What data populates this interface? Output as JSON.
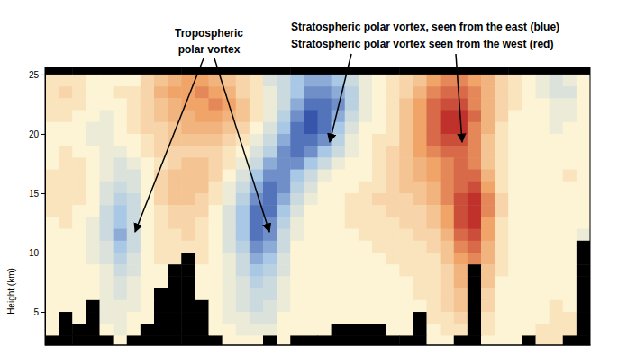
{
  "chart_data": {
    "type": "heatmap",
    "y_label": "Height (km)",
    "ylim": [
      2.2,
      25.6
    ],
    "yticks": [
      5,
      10,
      15,
      20,
      25
    ],
    "xlim": [
      0,
      40
    ],
    "tick_labels": "y",
    "zlim": [
      -10,
      10
    ],
    "annotations": [
      {
        "lines": [
          "Tropospheric",
          "polar vortex"
        ]
      },
      {
        "lines": [
          "Stratospheric polar vortex, seen from the east (blue)"
        ]
      },
      {
        "lines": [
          "Stratospheric polar vortex seen from the west (red)"
        ]
      }
    ],
    "y_edges": [
      25.6,
      25,
      24,
      23,
      22,
      21,
      20,
      19,
      18,
      17,
      16,
      15,
      14,
      13,
      12,
      11,
      10,
      9,
      8,
      7,
      6,
      5,
      4,
      3,
      2
    ],
    "cells": [
      [
        null,
        null,
        null,
        null,
        null,
        null,
        null,
        null,
        null,
        null,
        null,
        null,
        null,
        null,
        null,
        null,
        null,
        null,
        null,
        null,
        null,
        null,
        null,
        null,
        null,
        null,
        null,
        null,
        null,
        null,
        null,
        null,
        null,
        null,
        null,
        null,
        null,
        null,
        null,
        null
      ],
      [
        1,
        1,
        1,
        0,
        0,
        0,
        0,
        2,
        3,
        4,
        5,
        5,
        4,
        3,
        2,
        1,
        -2,
        -3,
        -5,
        -6,
        -6,
        -5,
        -3,
        -1,
        0,
        1,
        2,
        3,
        5,
        6,
        6,
        5,
        4,
        2,
        1,
        0,
        -1,
        -2,
        -1,
        0
      ],
      [
        1,
        2,
        1,
        0,
        0,
        1,
        1,
        2,
        4,
        5,
        5,
        6,
        5,
        4,
        2,
        1,
        -1,
        -3,
        -5,
        -7,
        -7,
        -6,
        -4,
        -1,
        0,
        1,
        2,
        4,
        6,
        7,
        7,
        6,
        4,
        2,
        1,
        0,
        -1,
        -2,
        -2,
        0
      ],
      [
        1,
        1,
        1,
        0,
        0,
        0,
        1,
        2,
        3,
        4,
        5,
        5,
        6,
        5,
        3,
        1,
        -1,
        -3,
        -6,
        -8,
        -8,
        -7,
        -4,
        -1,
        0,
        1,
        3,
        5,
        7,
        8,
        8,
        6,
        4,
        2,
        1,
        0,
        0,
        -1,
        -1,
        0
      ],
      [
        1,
        1,
        0,
        0,
        -1,
        0,
        1,
        2,
        3,
        4,
        4,
        5,
        5,
        4,
        3,
        1,
        -1,
        -4,
        -7,
        -9,
        -8,
        -6,
        -3,
        -1,
        0,
        1,
        3,
        5,
        7,
        9,
        9,
        7,
        4,
        2,
        0,
        0,
        0,
        -1,
        -1,
        0
      ],
      [
        0,
        0,
        0,
        -1,
        -1,
        0,
        1,
        2,
        2,
        3,
        4,
        4,
        4,
        3,
        2,
        0,
        -2,
        -5,
        -8,
        -9,
        -8,
        -5,
        -2,
        0,
        0,
        1,
        3,
        5,
        7,
        9,
        9,
        6,
        4,
        1,
        0,
        0,
        0,
        -1,
        0,
        0
      ],
      [
        0,
        0,
        0,
        -1,
        -1,
        0,
        0,
        1,
        2,
        3,
        3,
        3,
        3,
        2,
        1,
        -1,
        -3,
        -6,
        -8,
        -8,
        -7,
        -4,
        -1,
        0,
        1,
        1,
        3,
        5,
        7,
        8,
        8,
        6,
        3,
        1,
        0,
        0,
        0,
        0,
        0,
        0
      ],
      [
        0,
        1,
        0,
        0,
        -1,
        -1,
        0,
        1,
        2,
        2,
        2,
        2,
        2,
        1,
        0,
        -2,
        -4,
        -7,
        -8,
        -7,
        -5,
        -3,
        -1,
        0,
        1,
        2,
        3,
        5,
        6,
        7,
        7,
        6,
        3,
        1,
        0,
        0,
        0,
        0,
        0,
        0
      ],
      [
        0,
        1,
        1,
        0,
        -1,
        -2,
        -1,
        0,
        1,
        2,
        3,
        3,
        2,
        1,
        -1,
        -3,
        -6,
        -7,
        -7,
        -5,
        -3,
        -1,
        0,
        0,
        1,
        2,
        3,
        4,
        5,
        6,
        7,
        6,
        3,
        1,
        0,
        0,
        0,
        0,
        0,
        0
      ],
      [
        1,
        1,
        1,
        0,
        -1,
        -2,
        -2,
        0,
        2,
        3,
        3,
        3,
        2,
        0,
        -2,
        -5,
        -7,
        -7,
        -5,
        -3,
        -1,
        0,
        0,
        0,
        1,
        2,
        3,
        4,
        5,
        6,
        7,
        7,
        4,
        1,
        0,
        0,
        0,
        0,
        1,
        0
      ],
      [
        1,
        1,
        1,
        0,
        -2,
        -3,
        -2,
        0,
        2,
        3,
        3,
        3,
        1,
        -1,
        -3,
        -6,
        -8,
        -7,
        -4,
        -2,
        0,
        0,
        0,
        1,
        1,
        2,
        3,
        3,
        4,
        6,
        7,
        8,
        5,
        1,
        0,
        0,
        0,
        0,
        0,
        0
      ],
      [
        1,
        1,
        1,
        0,
        -2,
        -4,
        -3,
        0,
        2,
        3,
        3,
        2,
        1,
        -1,
        -4,
        -7,
        -8,
        -6,
        -3,
        -1,
        0,
        0,
        1,
        1,
        2,
        2,
        2,
        3,
        4,
        6,
        8,
        9,
        6,
        2,
        0,
        0,
        0,
        0,
        0,
        0
      ],
      [
        1,
        1,
        0,
        0,
        -3,
        -5,
        -3,
        0,
        1,
        2,
        2,
        2,
        0,
        -2,
        -5,
        -8,
        -8,
        -5,
        -2,
        0,
        0,
        0,
        1,
        1,
        1,
        2,
        2,
        2,
        3,
        5,
        8,
        9,
        6,
        2,
        0,
        0,
        0,
        0,
        0,
        0
      ],
      [
        0,
        1,
        0,
        -1,
        -3,
        -5,
        -3,
        0,
        1,
        2,
        2,
        1,
        0,
        -2,
        -5,
        -8,
        -7,
        -4,
        -1,
        0,
        0,
        0,
        1,
        1,
        1,
        1,
        2,
        2,
        3,
        5,
        8,
        9,
        5,
        1,
        0,
        0,
        0,
        0,
        0,
        0
      ],
      [
        0,
        0,
        0,
        -1,
        -3,
        -6,
        -3,
        0,
        1,
        1,
        2,
        1,
        0,
        -2,
        -5,
        -8,
        -7,
        -3,
        -1,
        0,
        0,
        0,
        0,
        1,
        1,
        1,
        1,
        2,
        2,
        4,
        7,
        8,
        5,
        1,
        0,
        0,
        0,
        0,
        0,
        -1
      ],
      [
        0,
        0,
        0,
        -1,
        -2,
        -5,
        -3,
        0,
        1,
        1,
        1,
        1,
        0,
        -2,
        -4,
        -7,
        -6,
        -3,
        0,
        0,
        0,
        0,
        0,
        0,
        1,
        1,
        1,
        1,
        2,
        3,
        6,
        7,
        4,
        1,
        0,
        0,
        0,
        0,
        0,
        null
      ],
      [
        0,
        0,
        0,
        -1,
        -2,
        -4,
        -2,
        0,
        1,
        1,
        null,
        1,
        0,
        -1,
        -3,
        -6,
        -5,
        -2,
        0,
        0,
        0,
        0,
        0,
        0,
        0,
        1,
        1,
        1,
        1,
        3,
        5,
        6,
        4,
        1,
        0,
        0,
        0,
        0,
        0,
        null
      ],
      [
        0,
        0,
        0,
        0,
        -1,
        -3,
        -2,
        0,
        0,
        null,
        null,
        0,
        0,
        -1,
        -3,
        -5,
        -4,
        -2,
        0,
        0,
        0,
        0,
        0,
        0,
        0,
        0,
        1,
        1,
        1,
        2,
        4,
        null,
        3,
        1,
        0,
        0,
        0,
        0,
        0,
        null
      ],
      [
        0,
        0,
        0,
        0,
        -1,
        -2,
        -1,
        0,
        0,
        null,
        null,
        0,
        0,
        -1,
        -2,
        -4,
        -3,
        -1,
        0,
        0,
        0,
        0,
        0,
        0,
        0,
        0,
        0,
        1,
        1,
        2,
        4,
        null,
        3,
        0,
        0,
        0,
        0,
        0,
        0,
        null
      ],
      [
        0,
        0,
        0,
        0,
        -1,
        -2,
        -1,
        0,
        null,
        null,
        null,
        0,
        0,
        -1,
        -2,
        -3,
        -3,
        -1,
        0,
        0,
        0,
        0,
        0,
        0,
        0,
        0,
        0,
        1,
        1,
        2,
        3,
        null,
        2,
        0,
        0,
        0,
        0,
        0,
        0,
        null
      ],
      [
        0,
        0,
        0,
        null,
        -1,
        -1,
        -1,
        0,
        null,
        null,
        null,
        null,
        0,
        -1,
        -2,
        -3,
        -2,
        -1,
        0,
        0,
        0,
        0,
        0,
        0,
        0,
        0,
        0,
        0,
        1,
        2,
        3,
        null,
        2,
        0,
        0,
        0,
        0,
        1,
        0,
        null
      ],
      [
        0,
        null,
        0,
        null,
        -1,
        -1,
        0,
        0,
        null,
        null,
        null,
        null,
        0,
        -1,
        -1,
        -2,
        -2,
        0,
        0,
        0,
        0,
        0,
        0,
        0,
        0,
        0,
        0,
        null,
        1,
        1,
        2,
        null,
        1,
        0,
        0,
        0,
        0,
        1,
        1,
        null
      ],
      [
        0,
        null,
        null,
        null,
        0,
        -1,
        0,
        null,
        null,
        null,
        null,
        null,
        0,
        0,
        -1,
        -1,
        -1,
        0,
        0,
        0,
        0,
        null,
        null,
        null,
        null,
        0,
        0,
        null,
        0,
        1,
        1,
        null,
        1,
        0,
        0,
        0,
        1,
        1,
        1,
        null
      ],
      [
        null,
        null,
        null,
        null,
        null,
        0,
        null,
        null,
        null,
        null,
        null,
        null,
        null,
        0,
        0,
        0,
        null,
        0,
        null,
        null,
        null,
        null,
        null,
        null,
        null,
        null,
        null,
        null,
        0,
        0,
        null,
        null,
        0,
        0,
        0,
        null,
        1,
        1,
        null,
        null
      ]
    ]
  }
}
